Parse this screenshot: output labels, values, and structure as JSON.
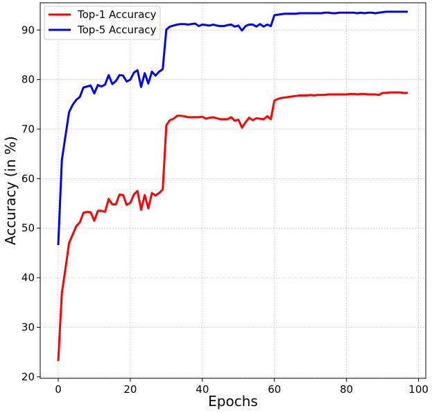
{
  "chart_data": {
    "type": "line",
    "title": "",
    "xlabel": "Epochs",
    "ylabel": "Accuracy (in %)",
    "xlim": [
      -5,
      102
    ],
    "ylim": [
      19.7,
      95.5
    ],
    "xticks": [
      0,
      20,
      40,
      60,
      80,
      100
    ],
    "yticks": [
      20,
      30,
      40,
      50,
      60,
      70,
      80,
      90
    ],
    "grid": true,
    "legend_position": "top-left",
    "x": [
      0,
      1,
      2,
      3,
      4,
      5,
      6,
      7,
      8,
      9,
      10,
      11,
      12,
      13,
      14,
      15,
      16,
      17,
      18,
      19,
      20,
      21,
      22,
      23,
      24,
      25,
      26,
      27,
      28,
      29,
      30,
      31,
      32,
      33,
      34,
      35,
      36,
      37,
      38,
      39,
      40,
      41,
      42,
      43,
      44,
      45,
      46,
      47,
      48,
      49,
      50,
      51,
      52,
      53,
      54,
      55,
      56,
      57,
      58,
      59,
      60,
      61,
      62,
      63,
      64,
      65,
      66,
      67,
      68,
      69,
      70,
      71,
      72,
      73,
      74,
      75,
      76,
      77,
      78,
      79,
      80,
      81,
      82,
      83,
      84,
      85,
      86,
      87,
      88,
      89,
      90,
      91,
      92,
      93,
      94,
      95,
      96,
      97
    ],
    "series": [
      {
        "name": "Top-1 Accuracy",
        "color": "#ff0000",
        "values": [
          23.2,
          36.9,
          41.8,
          47.0,
          48.7,
          50.4,
          51.2,
          53.1,
          53.3,
          53.2,
          51.5,
          53.5,
          53.5,
          53.3,
          55.9,
          54.8,
          54.8,
          56.8,
          56.7,
          54.7,
          55.1,
          56.8,
          57.5,
          53.7,
          56.7,
          54.0,
          57.1,
          56.6,
          57.1,
          57.8,
          70.8,
          71.8,
          72.1,
          72.7,
          72.7,
          72.6,
          72.4,
          72.4,
          72.4,
          72.4,
          72.5,
          72.1,
          72.3,
          72.4,
          72.2,
          72.0,
          72.0,
          72.0,
          72.4,
          71.7,
          71.9,
          70.3,
          71.4,
          72.3,
          71.8,
          72.2,
          72.1,
          72.0,
          72.6,
          72.0,
          75.8,
          76.1,
          76.3,
          76.4,
          76.5,
          76.6,
          76.7,
          76.8,
          76.8,
          76.8,
          76.9,
          76.8,
          76.9,
          76.9,
          76.9,
          77.0,
          77.0,
          77.0,
          77.0,
          77.0,
          77.0,
          77.1,
          77.1,
          77.0,
          77.1,
          77.1,
          77.0,
          77.0,
          77.0,
          76.9,
          77.3,
          77.3,
          77.4,
          77.4,
          77.4,
          77.4,
          77.3,
          77.3
        ]
      },
      {
        "name": "Top-5 Accuracy",
        "color": "#0000ff",
        "values": [
          46.6,
          63.7,
          68.6,
          73.4,
          74.9,
          75.9,
          76.5,
          78.4,
          78.6,
          78.8,
          77.2,
          78.9,
          78.6,
          79.0,
          80.9,
          79.1,
          79.7,
          80.9,
          80.8,
          79.6,
          80.0,
          81.4,
          81.9,
          78.5,
          81.3,
          79.2,
          81.6,
          80.8,
          81.6,
          82.1,
          90.1,
          90.7,
          90.9,
          91.1,
          91.2,
          91.2,
          91.1,
          91.2,
          91.3,
          90.8,
          91.1,
          91.0,
          90.9,
          91.1,
          90.9,
          90.8,
          90.8,
          91.0,
          91.1,
          90.7,
          90.9,
          89.9,
          90.8,
          91.1,
          91.1,
          90.7,
          91.2,
          90.7,
          91.1,
          90.8,
          93.0,
          93.1,
          93.2,
          93.3,
          93.3,
          93.3,
          93.3,
          93.4,
          93.4,
          93.4,
          93.4,
          93.4,
          93.4,
          93.4,
          93.5,
          93.5,
          93.4,
          93.4,
          93.5,
          93.5,
          93.5,
          93.5,
          93.5,
          93.4,
          93.5,
          93.4,
          93.5,
          93.5,
          93.4,
          93.5,
          93.6,
          93.7,
          93.7,
          93.7,
          93.7,
          93.7,
          93.7,
          93.7
        ]
      }
    ]
  }
}
